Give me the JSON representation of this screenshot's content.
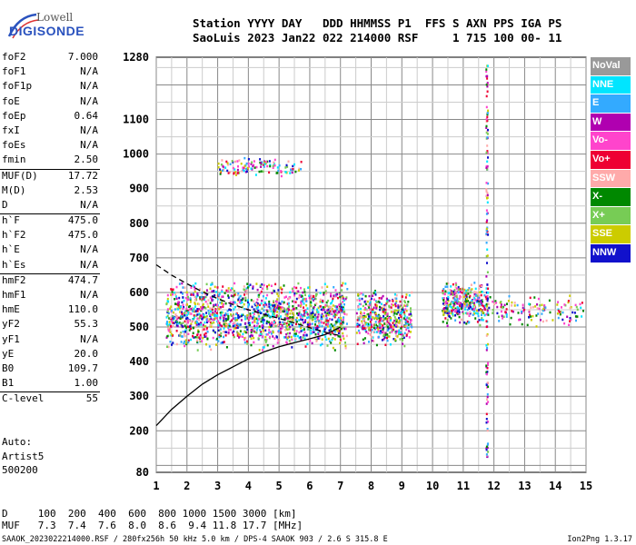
{
  "logo": {
    "line1": "Lowell",
    "line2": "DIGISONDE"
  },
  "header": {
    "line1": "Station YYYY DAY   DDD HHMMSS P1  FFS S AXN PPS IGA PS",
    "line2": "SaoLuis 2023 Jan22 022 214000 RSF     1 715 100 00- 11"
  },
  "params": [
    {
      "label": "foF2",
      "value": "7.000"
    },
    {
      "label": "foF1",
      "value": "N/A"
    },
    {
      "label": "foF1p",
      "value": "N/A"
    },
    {
      "label": "foE",
      "value": "N/A"
    },
    {
      "label": "foEp",
      "value": "0.64"
    },
    {
      "label": "fxI",
      "value": "N/A"
    },
    {
      "label": "foEs",
      "value": "N/A"
    },
    {
      "label": "fmin",
      "value": "2.50"
    },
    {
      "label": "MUF(D)",
      "value": "17.72"
    },
    {
      "label": "M(D)",
      "value": "2.53"
    },
    {
      "label": "D",
      "value": "N/A"
    },
    {
      "label": "h`F",
      "value": "475.0"
    },
    {
      "label": "h`F2",
      "value": "475.0"
    },
    {
      "label": "h`E",
      "value": "N/A"
    },
    {
      "label": "h`Es",
      "value": "N/A"
    },
    {
      "label": "hmF2",
      "value": "474.7"
    },
    {
      "label": "hmF1",
      "value": "N/A"
    },
    {
      "label": "hmE",
      "value": "110.0"
    },
    {
      "label": "yF2",
      "value": "55.3"
    },
    {
      "label": "yF1",
      "value": "N/A"
    },
    {
      "label": "yE",
      "value": "20.0"
    },
    {
      "label": "B0",
      "value": "109.7"
    },
    {
      "label": "B1",
      "value": "1.00"
    },
    {
      "label": "C-level",
      "value": "55"
    }
  ],
  "auto": {
    "line1": "Auto:",
    "line2": "Artist5",
    "line3": "500200"
  },
  "legend": [
    {
      "name": "NoVal",
      "color": "#999999"
    },
    {
      "name": "NNE",
      "color": "#00e5ff"
    },
    {
      "name": "E",
      "color": "#33aaff"
    },
    {
      "name": "W",
      "color": "#b000b0"
    },
    {
      "name": "Vo-",
      "color": "#ff44cc"
    },
    {
      "name": "Vo+",
      "color": "#ee0033"
    },
    {
      "name": "SSW",
      "color": "#ffaaaa"
    },
    {
      "name": "X-",
      "color": "#008800"
    },
    {
      "name": "X+",
      "color": "#77cc55"
    },
    {
      "name": "SSE",
      "color": "#cccc00"
    },
    {
      "name": "NNW",
      "color": "#1111cc"
    }
  ],
  "distance_table": {
    "line1": "D     100  200  400  600  800 1000 1500 3000 [km]",
    "line2": "MUF   7.3  7.4  7.6  8.0  8.6  9.4 11.8 17.7 [MHz]"
  },
  "footer": "SAAOK_2023022214000.RSF / 280fx256h 50 kHz 5.0 km / DPS-4 SAAOK 903 / 2.6 S 315.8 E",
  "version": "Ion2Png 1.3.17",
  "chart_data": {
    "type": "scatter",
    "x_ticks": [
      1,
      2,
      3,
      4,
      5,
      6,
      7,
      8,
      9,
      10,
      11,
      12,
      13,
      14,
      15
    ],
    "y_ticks": [
      80,
      200,
      300,
      400,
      500,
      600,
      700,
      800,
      900,
      1000,
      1100,
      1280
    ],
    "xlim": [
      1,
      15
    ],
    "ylim": [
      80,
      1280
    ],
    "grid": true,
    "legend_position": "right",
    "echo_clusters": [
      {
        "x_range": [
          1.3,
          7.2
        ],
        "y_range": [
          430,
          640
        ],
        "density": "high"
      },
      {
        "x_range": [
          7.5,
          9.3
        ],
        "y_range": [
          445,
          610
        ],
        "density": "high"
      },
      {
        "x_range": [
          10.3,
          11.6
        ],
        "y_range": [
          505,
          640
        ],
        "density": "high"
      },
      {
        "x_range": [
          11.6,
          14.9
        ],
        "y_range": [
          500,
          600
        ],
        "density": "low"
      },
      {
        "x_range": [
          3.0,
          5.7
        ],
        "y_range": [
          935,
          995
        ],
        "density": "low"
      }
    ],
    "vertical_traces": [
      {
        "x": 11.75,
        "y_range": [
          120,
          1270
        ]
      }
    ],
    "profile_curve": {
      "style": "solid",
      "points": [
        [
          1.0,
          215
        ],
        [
          1.5,
          262
        ],
        [
          2.0,
          300
        ],
        [
          2.5,
          335
        ],
        [
          3.0,
          362
        ],
        [
          3.5,
          385
        ],
        [
          4.0,
          408
        ],
        [
          4.5,
          428
        ],
        [
          5.0,
          443
        ],
        [
          5.5,
          455
        ],
        [
          6.0,
          466
        ],
        [
          6.5,
          478
        ],
        [
          7.0,
          500
        ]
      ]
    },
    "parabola_curve": {
      "style": "dashed",
      "points": [
        [
          1.0,
          680
        ],
        [
          1.5,
          650
        ],
        [
          2.0,
          625
        ],
        [
          2.5,
          602
        ],
        [
          3.0,
          582
        ],
        [
          3.5,
          565
        ],
        [
          4.0,
          550
        ],
        [
          4.5,
          537
        ],
        [
          5.0,
          525
        ],
        [
          5.5,
          512
        ],
        [
          6.0,
          498
        ],
        [
          6.5,
          485
        ],
        [
          7.0,
          475
        ]
      ]
    }
  }
}
